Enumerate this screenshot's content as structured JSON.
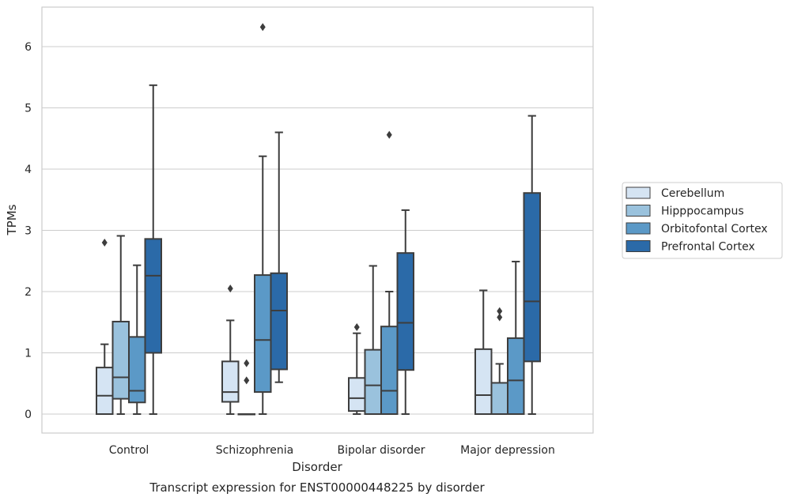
{
  "chart_data": {
    "type": "box",
    "title": "Transcript expression for ENST00000448225 by disorder",
    "xlabel": "Disorder",
    "ylabel": "TPMs",
    "categories": [
      "Control",
      "Schizophrenia",
      "Bipolar disorder",
      "Major depression"
    ],
    "y_ticks": [
      0,
      1,
      2,
      3,
      4,
      5,
      6
    ],
    "ylim": [
      -0.31,
      6.63
    ],
    "grid": "horizontal",
    "legend_position": "right",
    "series": [
      {
        "name": "Cerebellum",
        "color": "#d5e4f3",
        "boxes": [
          {
            "category": "Control",
            "whisker_low": 0,
            "q1": 0,
            "median": 0.3,
            "q3": 0.76,
            "whisker_high": 1.14,
            "outliers": [
              2.8
            ]
          },
          {
            "category": "Schizophrenia",
            "whisker_low": 0,
            "q1": 0.2,
            "median": 0.36,
            "q3": 0.86,
            "whisker_high": 1.53,
            "outliers": [
              2.05
            ]
          },
          {
            "category": "Bipolar disorder",
            "whisker_low": 0,
            "q1": 0.05,
            "median": 0.26,
            "q3": 0.59,
            "whisker_high": 1.32,
            "outliers": [
              1.42
            ]
          },
          {
            "category": "Major depression",
            "whisker_low": 0,
            "q1": 0,
            "median": 0.31,
            "q3": 1.06,
            "whisker_high": 2.02,
            "outliers": []
          }
        ]
      },
      {
        "name": "Hipppocampus",
        "color": "#9ac2dd",
        "boxes": [
          {
            "category": "Control",
            "whisker_low": 0,
            "q1": 0.25,
            "median": 0.6,
            "q3": 1.51,
            "whisker_high": 2.91,
            "outliers": []
          },
          {
            "category": "Schizophrenia",
            "whisker_low": 0,
            "q1": 0,
            "median": 0,
            "q3": 0,
            "whisker_high": 0,
            "outliers": [
              0.55,
              0.83
            ]
          },
          {
            "category": "Bipolar disorder",
            "whisker_low": 0,
            "q1": 0,
            "median": 0.47,
            "q3": 1.05,
            "whisker_high": 2.42,
            "outliers": []
          },
          {
            "category": "Major depression",
            "whisker_low": 0,
            "q1": 0,
            "median": 0,
            "q3": 0.51,
            "whisker_high": 0.82,
            "outliers": [
              1.58,
              1.68
            ]
          }
        ]
      },
      {
        "name": "Orbitofontal Cortex",
        "color": "#5b99c7",
        "boxes": [
          {
            "category": "Control",
            "whisker_low": 0,
            "q1": 0.19,
            "median": 0.38,
            "q3": 1.26,
            "whisker_high": 2.43,
            "outliers": []
          },
          {
            "category": "Schizophrenia",
            "whisker_low": 0,
            "q1": 0.36,
            "median": 1.21,
            "q3": 2.27,
            "whisker_high": 4.21,
            "outliers": [
              6.32
            ]
          },
          {
            "category": "Bipolar disorder",
            "whisker_low": 0,
            "q1": 0,
            "median": 0.38,
            "q3": 1.43,
            "whisker_high": 2.0,
            "outliers": [
              4.56
            ]
          },
          {
            "category": "Major depression",
            "whisker_low": 0,
            "q1": 0,
            "median": 0.55,
            "q3": 1.24,
            "whisker_high": 2.49,
            "outliers": []
          }
        ]
      },
      {
        "name": "Prefrontal Cortex",
        "color": "#2b6aa8",
        "boxes": [
          {
            "category": "Control",
            "whisker_low": 0,
            "q1": 1.0,
            "median": 2.26,
            "q3": 2.86,
            "whisker_high": 5.37,
            "outliers": []
          },
          {
            "category": "Schizophrenia",
            "whisker_low": 0.52,
            "q1": 0.73,
            "median": 1.69,
            "q3": 2.3,
            "whisker_high": 4.6,
            "outliers": []
          },
          {
            "category": "Bipolar disorder",
            "whisker_low": 0,
            "q1": 0.72,
            "median": 1.49,
            "q3": 2.63,
            "whisker_high": 3.33,
            "outliers": []
          },
          {
            "category": "Major depression",
            "whisker_low": 0,
            "q1": 0.86,
            "median": 1.84,
            "q3": 3.61,
            "whisker_high": 4.87,
            "outliers": []
          }
        ]
      }
    ]
  }
}
